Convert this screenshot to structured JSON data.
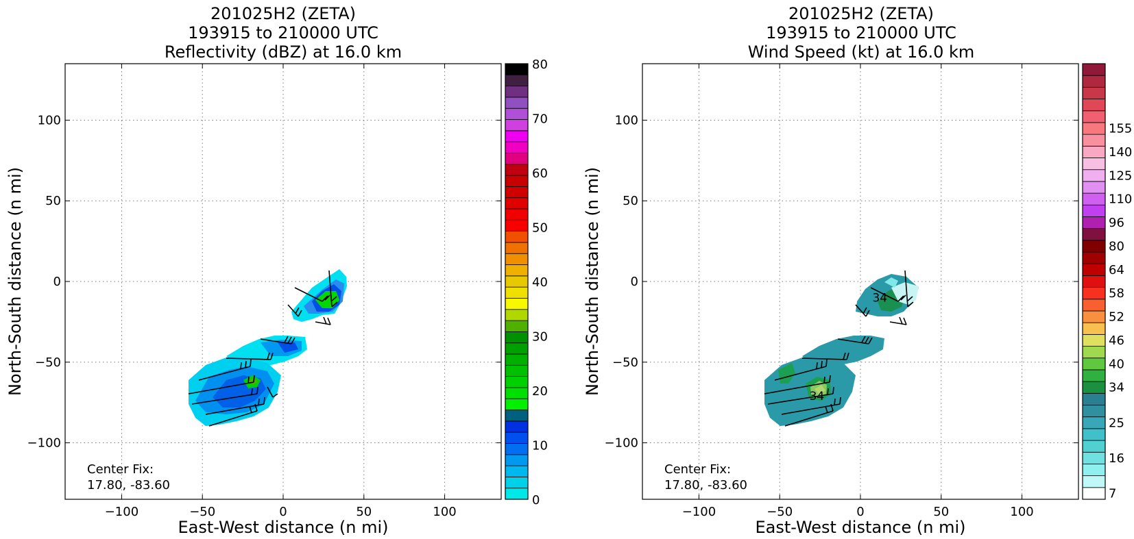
{
  "chart_data": [
    {
      "type": "heatmap",
      "title": [
        "201025H2 (ZETA)",
        "193915 to 210000 UTC",
        "Reflectivity (dBZ) at 16.0 km"
      ],
      "xlabel": "East-West distance (n mi)",
      "ylabel": "North-South distance (n mi)",
      "xlim": [
        -135,
        135
      ],
      "ylim": [
        -135,
        135
      ],
      "xticks": [
        -100,
        -50,
        0,
        50,
        100
      ],
      "yticks": [
        -100,
        -50,
        0,
        50,
        100
      ],
      "xtick_labels": [
        "−100",
        "−50",
        "0",
        "50",
        "100"
      ],
      "ytick_labels": [
        "−100",
        "−50",
        "0",
        "50",
        "100"
      ],
      "grid": true,
      "center_fix": [
        "Center Fix:",
        "17.80, -83.60"
      ],
      "colorbar": {
        "min": 0,
        "max": 80,
        "ticks": [
          0,
          10,
          20,
          30,
          40,
          50,
          60,
          70,
          80
        ],
        "colors": [
          "#00e8e8",
          "#00d0e8",
          "#00b8f0",
          "#0098f0",
          "#0070f0",
          "#0050f0",
          "#0030e0",
          "#006080",
          "#00f000",
          "#00e000",
          "#00d000",
          "#00c000",
          "#00b000",
          "#00a000",
          "#009000",
          "#50b000",
          "#b0d800",
          "#f8f800",
          "#f0e000",
          "#e8c800",
          "#f0b000",
          "#f09000",
          "#f07000",
          "#f05000",
          "#f80000",
          "#f00000",
          "#e00000",
          "#d00000",
          "#c80000",
          "#c00010",
          "#e00080",
          "#f000c0",
          "#f000f0",
          "#d040e0",
          "#b050d8",
          "#9050c0",
          "#703080",
          "#402040",
          "#000000"
        ]
      },
      "echo_regions": [
        {
          "name": "north-cell",
          "cx": 20,
          "cy": -8,
          "rx": 18,
          "ry": 14
        },
        {
          "name": "middle-band",
          "cx": -10,
          "cy": -40,
          "rx": 22,
          "ry": 9
        },
        {
          "name": "south-cell",
          "cx": -37,
          "cy": -70,
          "rx": 23,
          "ry": 17
        }
      ]
    },
    {
      "type": "heatmap",
      "title": [
        "201025H2 (ZETA)",
        "193915 to 210000 UTC",
        "Wind Speed (kt) at 16.0 km"
      ],
      "xlabel": "East-West distance (n mi)",
      "ylabel": "North-South distance (n mi)",
      "xlim": [
        -135,
        135
      ],
      "ylim": [
        -135,
        135
      ],
      "xticks": [
        -100,
        -50,
        0,
        50,
        100
      ],
      "yticks": [
        -100,
        -50,
        0,
        50,
        100
      ],
      "xtick_labels": [
        "−100",
        "−50",
        "0",
        "50",
        "100"
      ],
      "ytick_labels": [
        "−100",
        "−50",
        "0",
        "50",
        "100"
      ],
      "grid": true,
      "center_fix": [
        "Center Fix:",
        "17.80, -83.60"
      ],
      "contour_labels": [
        {
          "text": "34",
          "x": 12,
          "y": -10
        },
        {
          "text": "34",
          "x": -27,
          "y": -71
        }
      ],
      "colorbar": {
        "tick_labels": [
          "7",
          "16",
          "25",
          "34",
          "40",
          "46",
          "52",
          "58",
          "64",
          "80",
          "96",
          "110",
          "125",
          "140",
          "155"
        ],
        "tick_bins": [
          0,
          3,
          6,
          9,
          11,
          13,
          15,
          17,
          19,
          21,
          23,
          25,
          27,
          29,
          31
        ],
        "colors": [
          "#ffffff",
          "#c0f8f8",
          "#90f0f0",
          "#70e0e0",
          "#50d0d0",
          "#40c0c8",
          "#38a8b8",
          "#3090a0",
          "#2a8090",
          "#1a9040",
          "#30b040",
          "#60c840",
          "#a0d850",
          "#e0e060",
          "#f8c050",
          "#f89040",
          "#f86030",
          "#f83020",
          "#e01010",
          "#c00000",
          "#a00000",
          "#800000",
          "#801040",
          "#b020b0",
          "#c040f0",
          "#d060f0",
          "#e090f0",
          "#f0b0f0",
          "#f8c0e0",
          "#f8a8c0",
          "#f890a0",
          "#f87880",
          "#f06070",
          "#e04858",
          "#c83848",
          "#b02840",
          "#901838"
        ]
      },
      "echo_regions": [
        {
          "name": "north-cell",
          "cx": 20,
          "cy": -8,
          "rx": 18,
          "ry": 14
        },
        {
          "name": "middle-band",
          "cx": -10,
          "cy": -40,
          "rx": 22,
          "ry": 9
        },
        {
          "name": "south-cell",
          "cx": -37,
          "cy": -70,
          "rx": 23,
          "ry": 17
        }
      ]
    }
  ]
}
